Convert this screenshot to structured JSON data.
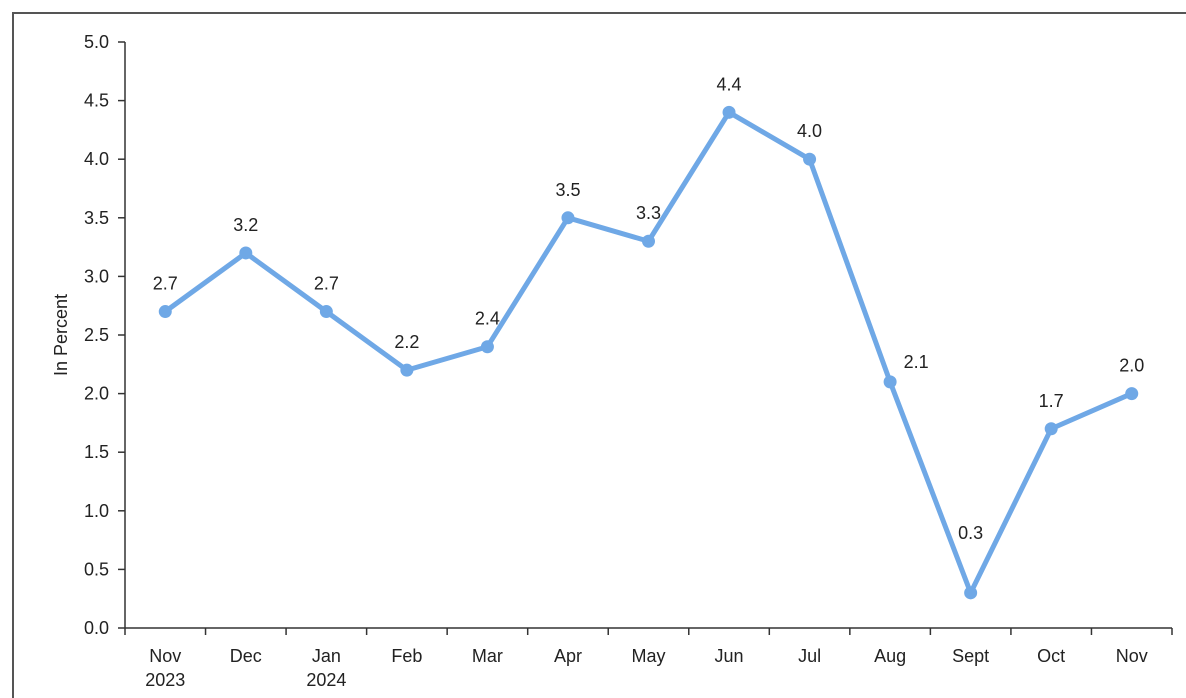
{
  "chart_data": {
    "type": "line",
    "ylabel": "In  Percent",
    "xlabel": "",
    "ylim": [
      0,
      5
    ],
    "yticks": [
      "0.0",
      "0.5",
      "1.0",
      "1.5",
      "2.0",
      "2.5",
      "3.0",
      "3.5",
      "4.0",
      "4.5",
      "5.0"
    ],
    "categories": [
      [
        "Nov",
        "2023"
      ],
      [
        "Dec"
      ],
      [
        "Jan",
        "2024"
      ],
      [
        "Feb"
      ],
      [
        "Mar"
      ],
      [
        "Apr"
      ],
      [
        "May"
      ],
      [
        "Jun"
      ],
      [
        "Jul"
      ],
      [
        "Aug"
      ],
      [
        "Sept"
      ],
      [
        "Oct"
      ],
      [
        "Nov"
      ]
    ],
    "series": [
      {
        "values": [
          2.7,
          3.2,
          2.7,
          2.2,
          2.4,
          3.5,
          3.3,
          4.4,
          4.0,
          2.1,
          0.3,
          1.7,
          2.0
        ],
        "labels": [
          "2.7",
          "3.2",
          "2.7",
          "2.2",
          "2.4",
          "3.5",
          "3.3",
          "4.4",
          "4.0",
          "2.1",
          "0.3",
          "1.7",
          "2.0"
        ],
        "color": "#6fa8e6"
      }
    ],
    "grid": false,
    "legend": "none"
  }
}
